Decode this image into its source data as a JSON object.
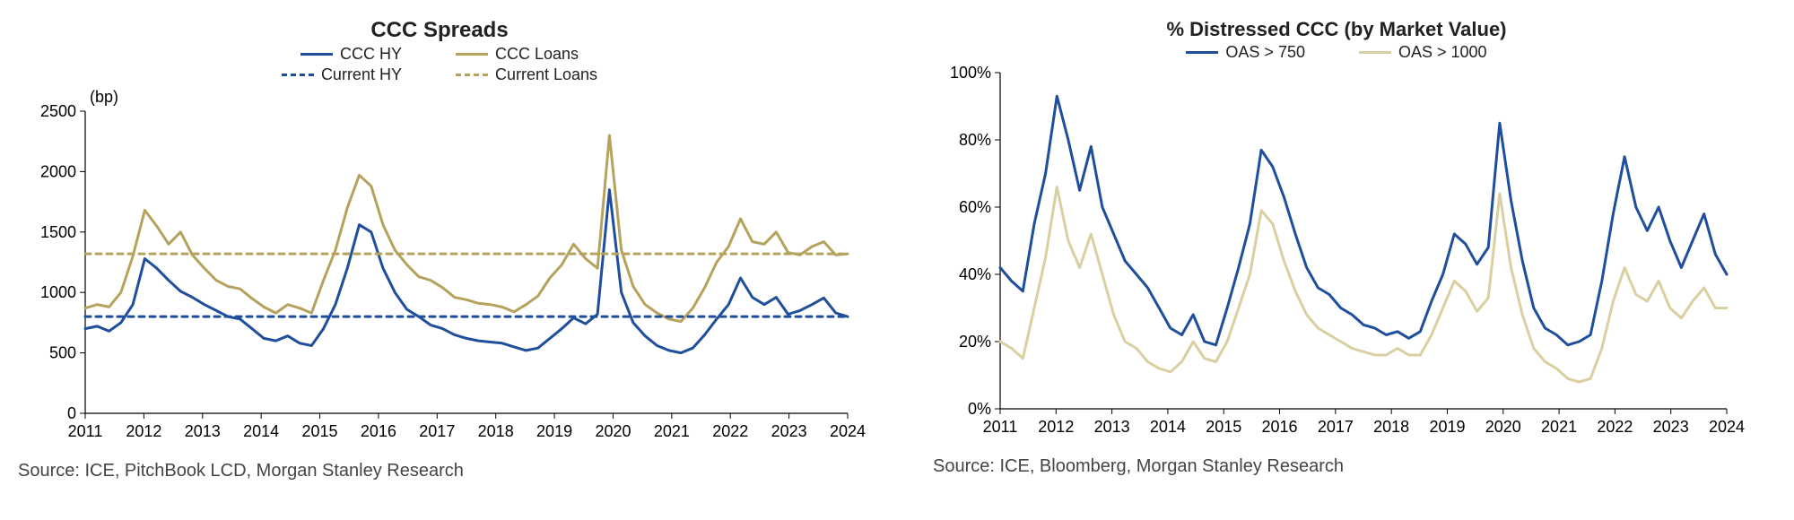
{
  "left_chart": {
    "type": "line",
    "title": "CCC Spreads",
    "y_axis_label": "(bp)",
    "title_fontsize": 24,
    "label_fontsize": 18,
    "tick_fontsize": 18,
    "background_color": "#ffffff",
    "axis_color": "#000000",
    "line_width": 3,
    "dash_pattern": "6,6",
    "x_years": [
      2011,
      2012,
      2013,
      2014,
      2015,
      2016,
      2017,
      2018,
      2019,
      2020,
      2021,
      2022,
      2023,
      2024
    ],
    "ylim": [
      0,
      2500
    ],
    "ytick_step": 500,
    "series": {
      "ccc_hy": {
        "label": "CCC HY",
        "color": "#1f4e9c",
        "style": "solid",
        "values": [
          700,
          720,
          680,
          750,
          900,
          1280,
          1200,
          1100,
          1010,
          960,
          900,
          850,
          800,
          780,
          700,
          620,
          600,
          640,
          580,
          560,
          700,
          900,
          1200,
          1560,
          1500,
          1200,
          1000,
          860,
          800,
          730,
          700,
          650,
          620,
          600,
          590,
          580,
          550,
          520,
          540,
          620,
          700,
          790,
          740,
          820,
          1850,
          1000,
          750,
          640,
          560,
          520,
          500,
          540,
          650,
          780,
          900,
          1120,
          960,
          900,
          960,
          820,
          850,
          900,
          955,
          830,
          800
        ]
      },
      "ccc_loans": {
        "label": "CCC Loans",
        "color": "#b5a25c",
        "style": "solid",
        "values": [
          870,
          900,
          880,
          1000,
          1300,
          1680,
          1550,
          1400,
          1500,
          1310,
          1200,
          1100,
          1050,
          1030,
          950,
          880,
          830,
          900,
          870,
          830,
          1100,
          1350,
          1700,
          1970,
          1880,
          1560,
          1350,
          1230,
          1130,
          1100,
          1040,
          960,
          940,
          910,
          900,
          880,
          840,
          900,
          970,
          1120,
          1230,
          1400,
          1280,
          1200,
          2300,
          1350,
          1050,
          900,
          830,
          780,
          760,
          870,
          1040,
          1250,
          1380,
          1610,
          1420,
          1400,
          1500,
          1330,
          1310,
          1380,
          1420,
          1310,
          1320
        ]
      },
      "current_hy": {
        "label": "Current HY",
        "color": "#1f4e9c",
        "style": "dashed",
        "constant_value": 800
      },
      "current_loans": {
        "label": "Current Loans",
        "color": "#b5a25c",
        "style": "dashed",
        "constant_value": 1320
      }
    },
    "source": "Source: ICE, PitchBook LCD, Morgan Stanley Research"
  },
  "right_chart": {
    "type": "line",
    "title": "% Distressed CCC (by Market Value)",
    "title_fontsize": 22,
    "tick_fontsize": 18,
    "background_color": "#ffffff",
    "axis_color": "#000000",
    "line_width": 3,
    "x_years": [
      2011,
      2012,
      2013,
      2014,
      2015,
      2016,
      2017,
      2018,
      2019,
      2020,
      2021,
      2022,
      2023,
      2024
    ],
    "ylim": [
      0,
      100
    ],
    "ytick_step": 20,
    "y_tick_suffix": "%",
    "series": {
      "oas750": {
        "label": "OAS > 750",
        "color": "#1f4e9c",
        "style": "solid",
        "values": [
          42,
          38,
          35,
          55,
          70,
          93,
          80,
          65,
          78,
          60,
          52,
          44,
          40,
          36,
          30,
          24,
          22,
          28,
          20,
          19,
          30,
          42,
          55,
          77,
          72,
          63,
          52,
          42,
          36,
          34,
          30,
          28,
          25,
          24,
          22,
          23,
          21,
          23,
          32,
          40,
          52,
          49,
          43,
          48,
          85,
          62,
          44,
          30,
          24,
          22,
          19,
          20,
          22,
          38,
          58,
          75,
          60,
          53,
          60,
          50,
          42,
          50,
          58,
          46,
          40
        ]
      },
      "oas1000": {
        "label": "OAS > 1000",
        "color": "#d9cfa0",
        "style": "solid",
        "values": [
          20,
          18,
          15,
          30,
          45,
          66,
          50,
          42,
          52,
          40,
          28,
          20,
          18,
          14,
          12,
          11,
          14,
          20,
          15,
          14,
          20,
          30,
          40,
          59,
          55,
          44,
          35,
          28,
          24,
          22,
          20,
          18,
          17,
          16,
          16,
          18,
          16,
          16,
          22,
          30,
          38,
          35,
          29,
          33,
          64,
          42,
          28,
          18,
          14,
          12,
          9,
          8,
          9,
          18,
          32,
          42,
          34,
          32,
          38,
          30,
          27,
          32,
          36,
          30,
          30
        ]
      }
    },
    "source": "Source: ICE, Bloomberg, Morgan Stanley Research"
  }
}
